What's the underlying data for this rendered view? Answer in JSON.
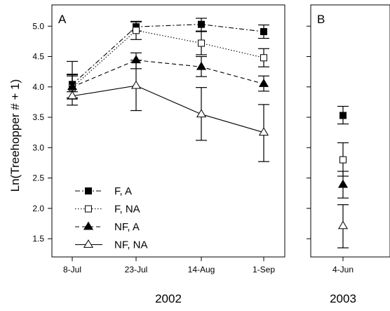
{
  "chart_data": {
    "type": "line",
    "ylabel": "Ln(Treehopper # + 1)",
    "ylim": [
      1.2,
      5.35
    ],
    "yticks": [
      "1.5",
      "2.0",
      "2.5",
      "3.0",
      "3.5",
      "4.0",
      "4.5",
      "5.0"
    ],
    "legend": {
      "placement": "bottom-left"
    },
    "series_styles": [
      {
        "name": "F, A",
        "marker": "filled-square",
        "line": "dash-dot",
        "color": "#000000"
      },
      {
        "name": "F, NA",
        "marker": "open-square",
        "line": "dotted",
        "color": "#000000"
      },
      {
        "name": "NF, A",
        "marker": "filled-triangle",
        "line": "dashed",
        "color": "#000000"
      },
      {
        "name": "NF, NA",
        "marker": "open-triangle",
        "line": "solid",
        "color": "#000000"
      }
    ],
    "panels": [
      {
        "label": "A",
        "year": "2002",
        "categories": [
          "8-Jul",
          "23-Jul",
          "14-Aug",
          "1-Sep"
        ],
        "series": [
          {
            "name": "F, A",
            "values": [
              4.04,
              4.99,
              5.03,
              4.91
            ],
            "err_low": [
              3.92,
              4.92,
              4.92,
              4.8
            ],
            "err_high": [
              4.21,
              5.08,
              5.13,
              5.02
            ]
          },
          {
            "name": "F, NA",
            "values": [
              3.99,
              4.93,
              4.72,
              4.48
            ],
            "err_low": [
              3.82,
              4.78,
              4.53,
              4.33
            ],
            "err_high": [
              4.18,
              5.07,
              4.91,
              4.63
            ]
          },
          {
            "name": "NF, A",
            "values": [
              4.0,
              4.44,
              4.33,
              4.05
            ],
            "err_low": [
              3.8,
              4.3,
              4.17,
              3.93
            ],
            "err_high": [
              4.2,
              4.56,
              4.5,
              4.18
            ]
          },
          {
            "name": "NF, NA",
            "values": [
              3.85,
              4.02,
              3.55,
              3.25
            ],
            "err_low": [
              3.7,
              3.61,
              3.12,
              2.77
            ],
            "err_high": [
              4.42,
              4.44,
              3.99,
              3.71
            ]
          }
        ]
      },
      {
        "label": "B",
        "year": "2003",
        "categories": [
          "4-Jun"
        ],
        "series": [
          {
            "name": "F, A",
            "values": [
              3.53
            ],
            "err_low": [
              3.39
            ],
            "err_high": [
              3.68
            ]
          },
          {
            "name": "F, NA",
            "values": [
              2.8
            ],
            "err_low": [
              2.53
            ],
            "err_high": [
              3.08
            ]
          },
          {
            "name": "NF, A",
            "values": [
              2.39
            ],
            "err_low": [
              2.17
            ],
            "err_high": [
              2.61
            ]
          },
          {
            "name": "NF, NA",
            "values": [
              1.71
            ],
            "err_low": [
              1.35
            ],
            "err_high": [
              2.06
            ]
          }
        ]
      }
    ]
  }
}
